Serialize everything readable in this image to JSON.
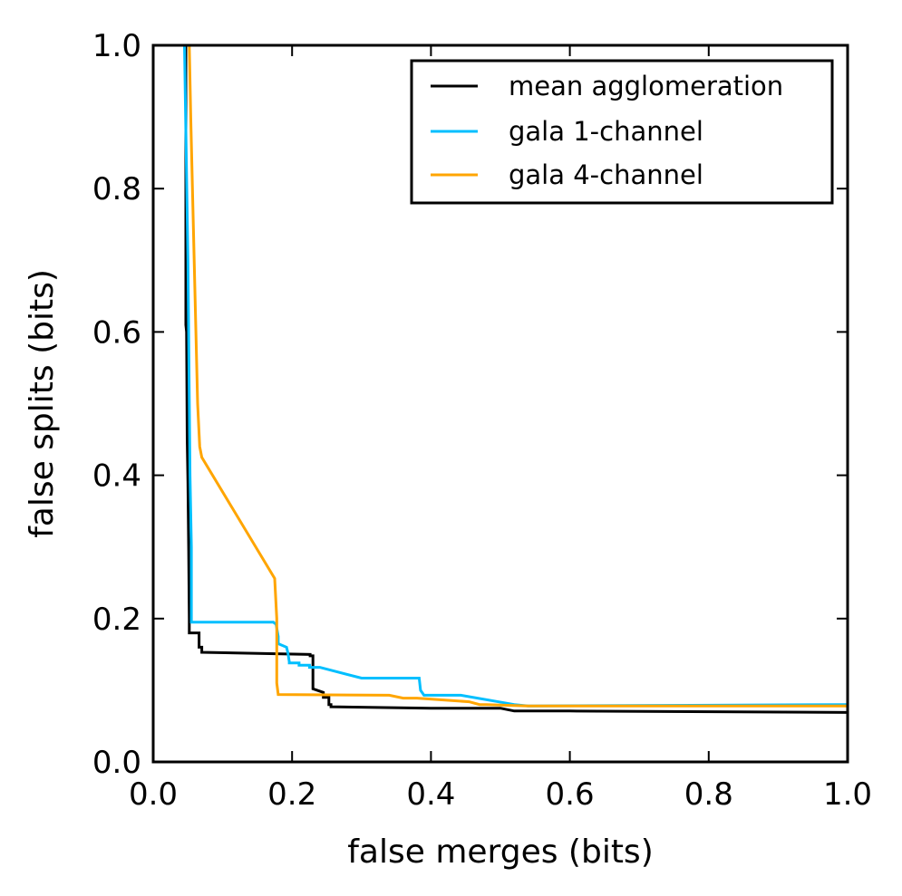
{
  "chart_data": {
    "type": "line",
    "title": "",
    "xlabel": "false merges (bits)",
    "ylabel": "false splits (bits)",
    "xlim": [
      0.0,
      1.0
    ],
    "ylim": [
      0.0,
      1.0
    ],
    "x_ticks": [
      "0.0",
      "0.2",
      "0.4",
      "0.6",
      "0.8",
      "1.0"
    ],
    "y_ticks": [
      "0.0",
      "0.2",
      "0.4",
      "0.6",
      "0.8",
      "1.0"
    ],
    "grid": false,
    "legend": {
      "placement": "top-right",
      "entries": [
        "mean agglomeration",
        "gala 1-channel",
        "gala 4-channel"
      ]
    },
    "series": [
      {
        "name": "mean agglomeration",
        "color": "#000000",
        "x": [
          0.047,
          0.047,
          0.048,
          0.049,
          0.05,
          0.051,
          0.052,
          0.052,
          0.066,
          0.066,
          0.07,
          0.07,
          0.226,
          0.226,
          0.23,
          0.23,
          0.245,
          0.245,
          0.253,
          0.253,
          0.256,
          0.256,
          0.4,
          0.5,
          0.52,
          0.6,
          1.0
        ],
        "y": [
          1.0,
          0.61,
          0.6,
          0.45,
          0.39,
          0.3,
          0.2,
          0.18,
          0.18,
          0.16,
          0.16,
          0.153,
          0.15,
          0.148,
          0.148,
          0.102,
          0.097,
          0.09,
          0.09,
          0.08,
          0.08,
          0.077,
          0.075,
          0.075,
          0.071,
          0.071,
          0.069
        ]
      },
      {
        "name": "gala 1-channel",
        "color": "#00bfff",
        "x": [
          0.045,
          0.05,
          0.053,
          0.055,
          0.055,
          0.173,
          0.177,
          0.18,
          0.18,
          0.192,
          0.194,
          0.196,
          0.196,
          0.21,
          0.21,
          0.225,
          0.225,
          0.24,
          0.3,
          0.383,
          0.385,
          0.39,
          0.443,
          0.52,
          0.54,
          1.0
        ],
        "y": [
          1.0,
          0.7,
          0.4,
          0.3,
          0.195,
          0.195,
          0.192,
          0.175,
          0.165,
          0.16,
          0.152,
          0.14,
          0.138,
          0.138,
          0.135,
          0.135,
          0.132,
          0.132,
          0.117,
          0.117,
          0.1,
          0.093,
          0.093,
          0.08,
          0.078,
          0.08
        ]
      },
      {
        "name": "gala 4-channel",
        "color": "#ffa500",
        "x": [
          0.052,
          0.054,
          0.059,
          0.064,
          0.067,
          0.07,
          0.175,
          0.178,
          0.178,
          0.18,
          0.34,
          0.36,
          0.38,
          0.455,
          0.47,
          0.48,
          0.54,
          0.68,
          0.72,
          1.0
        ],
        "y": [
          1.0,
          0.9,
          0.7,
          0.5,
          0.44,
          0.425,
          0.256,
          0.2,
          0.11,
          0.094,
          0.093,
          0.089,
          0.089,
          0.084,
          0.08,
          0.08,
          0.078,
          0.078,
          0.078,
          0.078
        ]
      }
    ]
  }
}
